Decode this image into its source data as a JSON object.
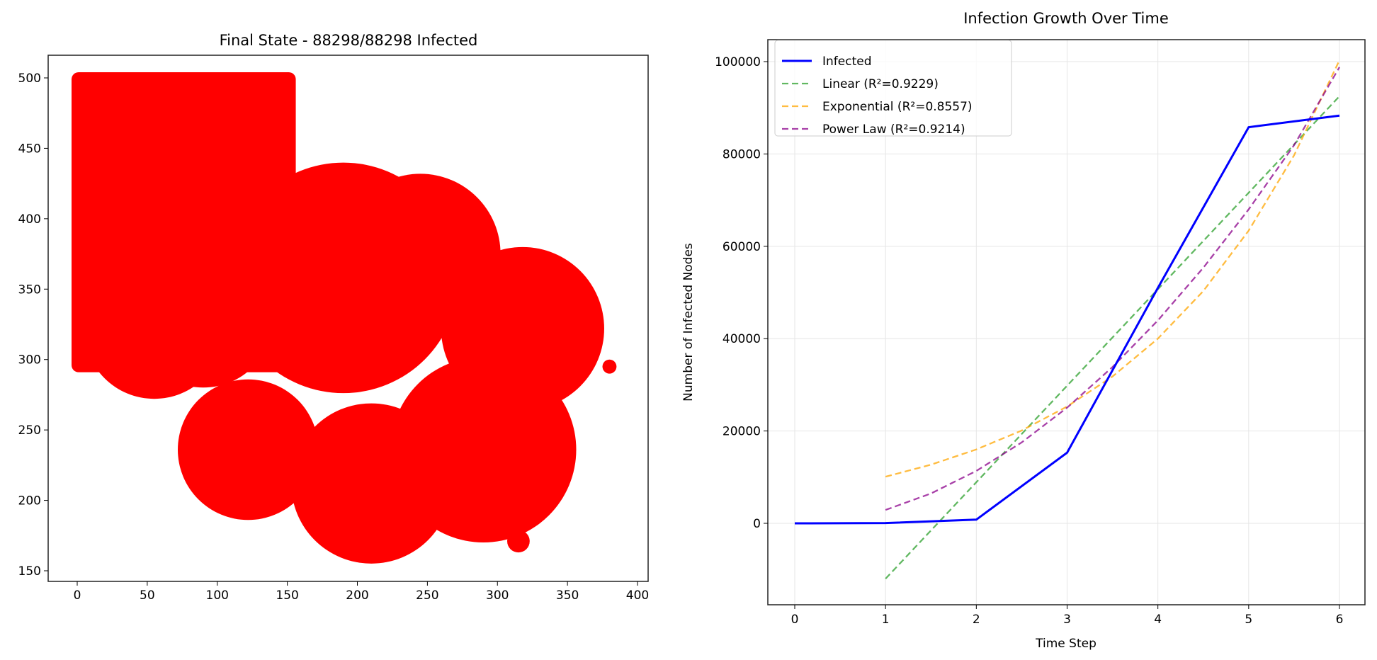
{
  "chart_data": [
    {
      "type": "scatter",
      "title": "Final State - 88298/88298 Infected",
      "xlabel": "",
      "ylabel": "",
      "xlim": [
        -27,
        408
      ],
      "ylim": [
        142,
        518
      ],
      "xticks": [
        "0",
        "50",
        "100",
        "150",
        "200",
        "250",
        "300",
        "350",
        "400"
      ],
      "yticks": [
        "150",
        "200",
        "250",
        "300",
        "350",
        "400",
        "450",
        "500"
      ],
      "grid": false,
      "point_color": "#ff0000",
      "regions": [
        {
          "shape": "rect",
          "x": [
            0,
            152
          ],
          "y": [
            295,
            500
          ]
        },
        {
          "shape": "circle",
          "cx": 55,
          "cy": 322,
          "r": 50
        },
        {
          "shape": "circle",
          "cx": 90,
          "cy": 330,
          "r": 50
        },
        {
          "shape": "circle",
          "cx": 190,
          "cy": 358,
          "r": 82
        },
        {
          "shape": "circle",
          "cx": 245,
          "cy": 375,
          "r": 57
        },
        {
          "shape": "circle",
          "cx": 122,
          "cy": 236,
          "r": 50
        },
        {
          "shape": "circle",
          "cx": 210,
          "cy": 212,
          "r": 57
        },
        {
          "shape": "circle",
          "cx": 290,
          "cy": 236,
          "r": 66
        },
        {
          "shape": "circle",
          "cx": 318,
          "cy": 322,
          "r": 58
        },
        {
          "shape": "circle",
          "cx": 380,
          "cy": 295,
          "r": 5
        },
        {
          "shape": "circle",
          "cx": 315,
          "cy": 171,
          "r": 8
        }
      ]
    },
    {
      "type": "line",
      "title": "Infection Growth Over Time",
      "xlabel": "Time Step",
      "ylabel": "Number of Infected Nodes",
      "xlim": [
        -0.3,
        6.3
      ],
      "ylim": [
        -17500,
        106000
      ],
      "xticks": [
        "0",
        "1",
        "2",
        "3",
        "4",
        "5",
        "6"
      ],
      "yticks": [
        "0",
        "20000",
        "40000",
        "60000",
        "80000",
        "100000"
      ],
      "grid": true,
      "legend_position": "top-left",
      "series": [
        {
          "name": "Infected",
          "color": "#0000ff",
          "style": "solid",
          "x": [
            0,
            1,
            2,
            3,
            4,
            5,
            6
          ],
          "y": [
            0,
            50,
            800,
            15300,
            51000,
            85800,
            88298
          ]
        },
        {
          "name": "Linear (R²=0.9229)",
          "color": "#2ca02c",
          "style": "dashed",
          "x": [
            1,
            1.5,
            2,
            2.5,
            3,
            3.5,
            4,
            4.5,
            5,
            5.5,
            6
          ],
          "y": [
            -12000,
            -1550,
            8900,
            19350,
            29800,
            40250,
            50700,
            61150,
            71600,
            82050,
            92500
          ]
        },
        {
          "name": "Exponential (R²=0.8557)",
          "color": "#ffa500",
          "style": "dashed",
          "x": [
            1,
            1.5,
            2,
            2.5,
            3,
            3.5,
            4,
            4.5,
            5,
            5.5,
            6
          ],
          "y": [
            10100,
            12700,
            16000,
            20100,
            25300,
            31800,
            40000,
            50300,
            63400,
            79700,
            100300
          ]
        },
        {
          "name": "Power Law (R²=0.9214)",
          "color": "#8b008b",
          "style": "dashed",
          "x": [
            1,
            1.5,
            2,
            2.5,
            3,
            3.5,
            4,
            4.5,
            5,
            5.5,
            6
          ],
          "y": [
            2900,
            6460,
            11350,
            17530,
            25050,
            33850,
            43950,
            55350,
            68000,
            81900,
            98800
          ]
        }
      ]
    }
  ]
}
